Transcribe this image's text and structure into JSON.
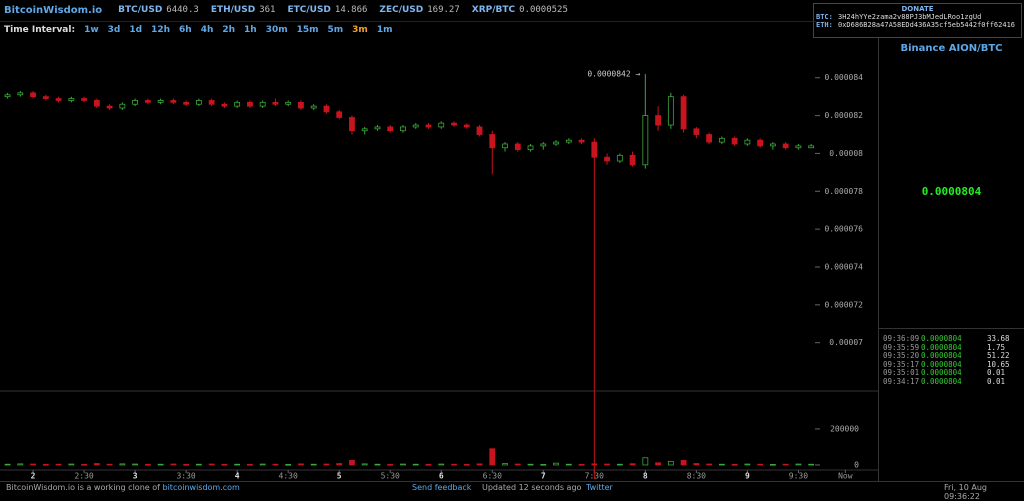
{
  "header": {
    "brand": "BitcoinWisdom.io",
    "tickers": [
      {
        "name": "BTC/USD",
        "value": "6440.3"
      },
      {
        "name": "ETH/USD",
        "value": "361"
      },
      {
        "name": "ETC/USD",
        "value": "14.866"
      },
      {
        "name": "ZEC/USD",
        "value": "169.27"
      },
      {
        "name": "XRP/BTC",
        "value": "0.0000525"
      }
    ]
  },
  "donate": {
    "title": "DONATE",
    "rows": [
      {
        "coin": "BTC:",
        "address": "3H24hYYe2zama2v88PJ3bMJedLRoo1zgUd"
      },
      {
        "coin": "ETH:",
        "address": "0xD686B28a47A58EDd436A35cf5eb5442f0ff62416"
      }
    ]
  },
  "toolbar": {
    "label": "Time Interval:",
    "intervals": [
      "1w",
      "3d",
      "1d",
      "12h",
      "6h",
      "4h",
      "2h",
      "1h",
      "30m",
      "15m",
      "5m",
      "3m",
      "1m"
    ],
    "active": "3m"
  },
  "chart_data": [
    {
      "type": "candlestick",
      "up_color": "#3aa83a",
      "down_color": "#c8141e",
      "x": [
        1.75,
        1.875,
        2,
        2.125,
        2.25,
        2.375,
        2.5,
        2.625,
        2.75,
        2.875,
        3,
        3.125,
        3.25,
        3.375,
        3.5,
        3.625,
        3.75,
        3.875,
        4,
        4.125,
        4.25,
        4.375,
        4.5,
        4.625,
        4.75,
        4.875,
        5,
        5.125,
        5.25,
        5.375,
        5.5,
        5.625,
        5.75,
        5.875,
        6,
        6.125,
        6.25,
        6.375,
        6.5,
        6.625,
        6.75,
        6.875,
        7,
        7.125,
        7.25,
        7.375,
        7.5,
        7.625,
        7.75,
        7.875,
        8,
        8.125,
        8.25,
        8.375,
        8.5,
        8.625,
        8.75,
        8.875,
        9,
        9.125,
        9.25,
        9.375,
        9.5,
        9.625
      ],
      "open": [
        8.3e-05,
        8.31e-05,
        8.32e-05,
        8.3e-05,
        8.29e-05,
        8.28e-05,
        8.29e-05,
        8.28e-05,
        8.25e-05,
        8.24e-05,
        8.26e-05,
        8.28e-05,
        8.27e-05,
        8.28e-05,
        8.27e-05,
        8.26e-05,
        8.28e-05,
        8.26e-05,
        8.25e-05,
        8.27e-05,
        8.25e-05,
        8.27e-05,
        8.26e-05,
        8.27e-05,
        8.24e-05,
        8.25e-05,
        8.22e-05,
        8.19e-05,
        8.12e-05,
        8.13e-05,
        8.14e-05,
        8.12e-05,
        8.14e-05,
        8.15e-05,
        8.14e-05,
        8.16e-05,
        8.15e-05,
        8.14e-05,
        8.1e-05,
        8.03e-05,
        8.05e-05,
        8.02e-05,
        8.04e-05,
        8.05e-05,
        8.06e-05,
        8.07e-05,
        8.06e-05,
        7.98e-05,
        7.96e-05,
        7.99e-05,
        7.94e-05,
        8.2e-05,
        8.15e-05,
        8.3e-05,
        8.13e-05,
        8.1e-05,
        8.06e-05,
        8.08e-05,
        8.05e-05,
        8.07e-05,
        8.04e-05,
        8.05e-05,
        8.03e-05,
        8.03e-05
      ],
      "high": [
        8.32e-05,
        8.33e-05,
        8.33e-05,
        8.31e-05,
        8.3e-05,
        8.3e-05,
        8.3e-05,
        8.29e-05,
        8.26e-05,
        8.27e-05,
        8.29e-05,
        8.29e-05,
        8.29e-05,
        8.29e-05,
        8.28e-05,
        8.29e-05,
        8.29e-05,
        8.27e-05,
        8.28e-05,
        8.28e-05,
        8.28e-05,
        8.29e-05,
        8.28e-05,
        8.28e-05,
        8.26e-05,
        8.26e-05,
        8.23e-05,
        8.2e-05,
        8.14e-05,
        8.15e-05,
        8.15e-05,
        8.15e-05,
        8.16e-05,
        8.16e-05,
        8.17e-05,
        8.17e-05,
        8.16e-05,
        8.15e-05,
        8.12e-05,
        8.06e-05,
        8.06e-05,
        8.05e-05,
        8.06e-05,
        8.07e-05,
        8.08e-05,
        8.08e-05,
        8.08e-05,
        8e-05,
        8e-05,
        8.01e-05,
        8.42e-05,
        8.25e-05,
        8.32e-05,
        8.31e-05,
        8.14e-05,
        8.11e-05,
        8.09e-05,
        8.09e-05,
        8.08e-05,
        8.08e-05,
        8.06e-05,
        8.06e-05,
        8.05e-05,
        8.05e-05
      ],
      "low": [
        8.29e-05,
        8.3e-05,
        8.29e-05,
        8.28e-05,
        8.27e-05,
        8.27e-05,
        8.27e-05,
        8.24e-05,
        8.23e-05,
        8.23e-05,
        8.25e-05,
        8.26e-05,
        8.26e-05,
        8.26e-05,
        8.25e-05,
        8.25e-05,
        8.25e-05,
        8.24e-05,
        8.24e-05,
        8.24e-05,
        8.24e-05,
        8.25e-05,
        8.25e-05,
        8.23e-05,
        8.23e-05,
        8.21e-05,
        8.18e-05,
        8.1e-05,
        8.1e-05,
        8.12e-05,
        8.11e-05,
        8.11e-05,
        8.13e-05,
        8.13e-05,
        8.13e-05,
        8.14e-05,
        8.13e-05,
        8.09e-05,
        7.89e-05,
        8.01e-05,
        8.01e-05,
        8.01e-05,
        8.02e-05,
        8.04e-05,
        8.05e-05,
        8.05e-05,
        6.28e-05,
        7.94e-05,
        7.95e-05,
        7.93e-05,
        7.92e-05,
        8.12e-05,
        8.13e-05,
        8.11e-05,
        8.08e-05,
        8.05e-05,
        8.05e-05,
        8.04e-05,
        8.04e-05,
        8.03e-05,
        8.02e-05,
        8.02e-05,
        8.02e-05,
        8.03e-05
      ],
      "close": [
        8.31e-05,
        8.32e-05,
        8.3e-05,
        8.29e-05,
        8.28e-05,
        8.29e-05,
        8.28e-05,
        8.25e-05,
        8.24e-05,
        8.26e-05,
        8.28e-05,
        8.27e-05,
        8.28e-05,
        8.27e-05,
        8.26e-05,
        8.28e-05,
        8.26e-05,
        8.25e-05,
        8.27e-05,
        8.25e-05,
        8.27e-05,
        8.26e-05,
        8.27e-05,
        8.24e-05,
        8.25e-05,
        8.22e-05,
        8.19e-05,
        8.12e-05,
        8.13e-05,
        8.14e-05,
        8.12e-05,
        8.14e-05,
        8.15e-05,
        8.14e-05,
        8.16e-05,
        8.15e-05,
        8.14e-05,
        8.1e-05,
        8.03e-05,
        8.05e-05,
        8.02e-05,
        8.04e-05,
        8.05e-05,
        8.06e-05,
        8.07e-05,
        8.06e-05,
        7.98e-05,
        7.96e-05,
        7.99e-05,
        7.94e-05,
        8.2e-05,
        8.15e-05,
        8.3e-05,
        8.13e-05,
        8.1e-05,
        8.06e-05,
        8.08e-05,
        8.05e-05,
        8.07e-05,
        8.04e-05,
        8.05e-05,
        8.03e-05,
        8.04e-05,
        8.04e-05
      ],
      "xlim": [
        1.676,
        10.28
      ],
      "xticks": [
        2,
        {
          "value": 2.5,
          "label": "2:30"
        },
        3,
        {
          "value": 3.5,
          "label": "3:30"
        },
        4,
        {
          "value": 4.5,
          "label": "4:30"
        },
        5,
        {
          "value": 5.5,
          "label": "5:30"
        },
        6,
        {
          "value": 6.5,
          "label": "6:30"
        },
        7,
        {
          "value": 7.5,
          "label": "7:30"
        },
        8,
        {
          "value": 8.5,
          "label": "8:30"
        },
        9,
        {
          "value": 9.5,
          "label": "9:30"
        },
        {
          "value": 9.96,
          "label": "Now"
        }
      ],
      "ylim": [
        6.75e-05,
        8.61e-05
      ],
      "yticks": [
        7e-05,
        7.2e-05,
        7.4e-05,
        7.6e-05,
        7.8e-05,
        8e-05,
        8.2e-05,
        8.4e-05
      ],
      "annotation": {
        "value": 8.42e-05,
        "label": "0.0000842 →"
      }
    },
    {
      "type": "bar",
      "values": [
        4000,
        6000,
        5000,
        3000,
        4000,
        5000,
        3000,
        8000,
        4000,
        6000,
        5000,
        3000,
        4000,
        5000,
        3000,
        4000,
        5000,
        3000,
        4000,
        3000,
        5000,
        4000,
        3000,
        6000,
        4000,
        5000,
        8000,
        25000,
        6000,
        4000,
        3000,
        5000,
        4000,
        3000,
        5000,
        4000,
        3000,
        6000,
        90000,
        8000,
        5000,
        4000,
        3000,
        10000,
        4000,
        3000,
        6000,
        5000,
        4000,
        7000,
        40000,
        12000,
        20000,
        25000,
        8000,
        5000,
        4000,
        3000,
        5000,
        4000,
        3000,
        4000,
        5000,
        4000
      ],
      "ylim": [
        -28000,
        405000
      ],
      "yticks": [
        0,
        200000
      ]
    }
  ],
  "panel": {
    "pair": "Binance AION/BTC",
    "price": "0.0000804",
    "trades": [
      [
        "09:36:09",
        "0.0000804",
        "33.68"
      ],
      [
        "09:35:59",
        "0.0000804",
        "1.75"
      ],
      [
        "09:35:20",
        "0.0000804",
        "51.22"
      ],
      [
        "09:35:17",
        "0.0000804",
        "10.65"
      ],
      [
        "09:35:01",
        "0.0000804",
        "0.01"
      ],
      [
        "09:34:17",
        "0.0000804",
        "0.01"
      ]
    ]
  },
  "footer": {
    "note": "BitcoinWisdom.io is a working clone of",
    "link": "bitcoinwisdom.com",
    "feedback": "Send feedback",
    "updated": "Updated 12 seconds ago",
    "twitter": "Twitter",
    "datetime": "Fri, 10 Aug 09:36:22"
  }
}
